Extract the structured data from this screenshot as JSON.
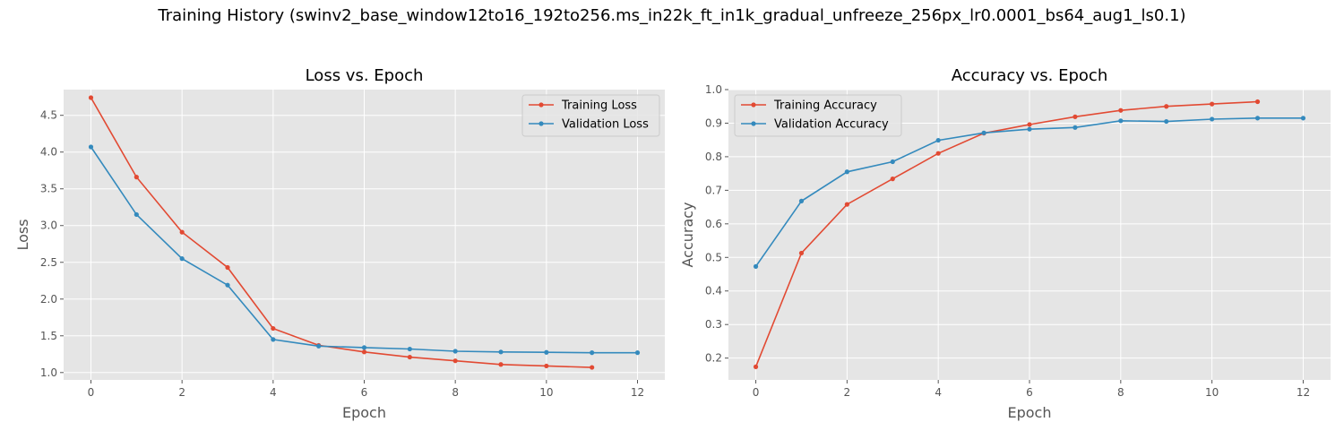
{
  "figure": {
    "suptitle": "Training History (swinv2_base_window12to16_192to256.ms_in22k_ft_in1k_gradual_unfreeze_256px_lr0.0001_bs64_aug1_ls0.1)"
  },
  "style": {
    "axes_bg": "#e5e5e5",
    "grid": "#ffffff",
    "tick_text": "#555555",
    "label_text": "#555555"
  },
  "chart_data": [
    {
      "type": "line",
      "title": "Loss vs. Epoch",
      "xlabel": "Epoch",
      "ylabel": "Loss",
      "xlim": [
        -0.6,
        12.6
      ],
      "ylim": [
        0.9,
        4.85
      ],
      "xticks": [
        0,
        2,
        4,
        6,
        8,
        10,
        12
      ],
      "yticks": [
        1.0,
        1.5,
        2.0,
        2.5,
        3.0,
        3.5,
        4.0,
        4.5
      ],
      "ytick_labels": [
        "1.0",
        "1.5",
        "2.0",
        "2.5",
        "3.0",
        "3.5",
        "4.0",
        "4.5"
      ],
      "grid": true,
      "legend_position": "upper right",
      "series": [
        {
          "name": "Training Loss",
          "color": "#e24a33",
          "x": [
            0,
            1,
            2,
            3,
            4,
            5,
            6,
            7,
            8,
            9,
            10,
            11
          ],
          "y": [
            4.74,
            3.66,
            2.91,
            2.43,
            1.6,
            1.37,
            1.28,
            1.21,
            1.16,
            1.11,
            1.09,
            1.07
          ]
        },
        {
          "name": "Validation Loss",
          "color": "#348abd",
          "x": [
            0,
            1,
            2,
            3,
            4,
            5,
            6,
            7,
            8,
            9,
            10,
            11,
            12
          ],
          "y": [
            4.07,
            3.15,
            2.55,
            2.19,
            1.45,
            1.36,
            1.34,
            1.32,
            1.29,
            1.28,
            1.275,
            1.27,
            1.27
          ]
        }
      ]
    },
    {
      "type": "line",
      "title": "Accuracy vs. Epoch",
      "xlabel": "Epoch",
      "ylabel": "Accuracy",
      "xlim": [
        -0.6,
        12.6
      ],
      "ylim": [
        0.135,
        1.0
      ],
      "xticks": [
        0,
        2,
        4,
        6,
        8,
        10,
        12
      ],
      "yticks": [
        0.2,
        0.3,
        0.4,
        0.5,
        0.6,
        0.7,
        0.8,
        0.9,
        1.0
      ],
      "ytick_labels": [
        "0.2",
        "0.3",
        "0.4",
        "0.5",
        "0.6",
        "0.7",
        "0.8",
        "0.9",
        "1.0"
      ],
      "grid": true,
      "legend_position": "upper left",
      "series": [
        {
          "name": "Training Accuracy",
          "color": "#e24a33",
          "x": [
            0,
            1,
            2,
            3,
            4,
            5,
            6,
            7,
            8,
            9,
            10,
            11
          ],
          "y": [
            0.174,
            0.513,
            0.658,
            0.734,
            0.81,
            0.87,
            0.896,
            0.919,
            0.938,
            0.95,
            0.957,
            0.964
          ]
        },
        {
          "name": "Validation Accuracy",
          "color": "#348abd",
          "x": [
            0,
            1,
            2,
            3,
            4,
            5,
            6,
            7,
            8,
            9,
            10,
            11,
            12
          ],
          "y": [
            0.473,
            0.668,
            0.755,
            0.785,
            0.849,
            0.871,
            0.882,
            0.887,
            0.907,
            0.905,
            0.912,
            0.915,
            0.915
          ]
        }
      ]
    }
  ]
}
